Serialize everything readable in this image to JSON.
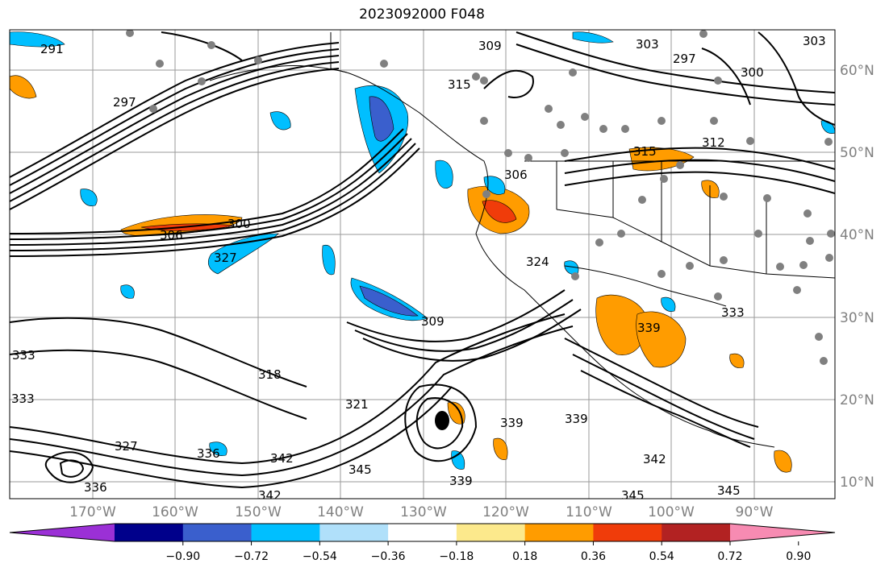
{
  "title": "2023092000 F048",
  "axes": {
    "x_ticks": [
      "170°W",
      "160°W",
      "150°W",
      "140°W",
      "130°W",
      "120°W",
      "110°W",
      "100°W",
      "90°W"
    ],
    "y_ticks": [
      "60°N",
      "50°N",
      "40°N",
      "30°N",
      "20°N",
      "10°N"
    ]
  },
  "colorbar": {
    "ticks": [
      "−0.90",
      "−0.72",
      "−0.54",
      "−0.36",
      "−0.18",
      "0.18",
      "0.36",
      "0.54",
      "0.72",
      "0.90"
    ],
    "colors": [
      "#9b30d6",
      "#00008b",
      "#3a5fcd",
      "#00bfff",
      "#b0e0fa",
      "#ffffff",
      "#fce98c",
      "#ff9c00",
      "#f03c0a",
      "#b22222",
      "#f78bb2"
    ]
  },
  "contour_labels": [
    {
      "text": "291"
    },
    {
      "text": "297"
    },
    {
      "text": "309"
    },
    {
      "text": "303"
    },
    {
      "text": "297"
    },
    {
      "text": "300"
    },
    {
      "text": "303"
    },
    {
      "text": "315"
    },
    {
      "text": "306"
    },
    {
      "text": "300"
    },
    {
      "text": "306"
    },
    {
      "text": "327"
    },
    {
      "text": "309"
    },
    {
      "text": "312"
    },
    {
      "text": "315"
    },
    {
      "text": "324"
    },
    {
      "text": "321"
    },
    {
      "text": "333"
    },
    {
      "text": "318"
    },
    {
      "text": "327"
    },
    {
      "text": "336"
    },
    {
      "text": "342"
    },
    {
      "text": "345"
    },
    {
      "text": "339"
    },
    {
      "text": "345"
    },
    {
      "text": "339"
    },
    {
      "text": "342"
    },
    {
      "text": "345"
    },
    {
      "text": "339"
    },
    {
      "text": "333"
    },
    {
      "text": "336"
    },
    {
      "text": "333"
    },
    {
      "text": "342"
    },
    {
      "text": "339"
    }
  ]
}
